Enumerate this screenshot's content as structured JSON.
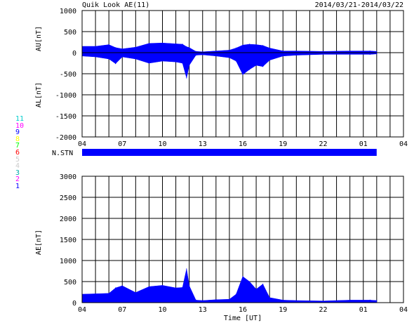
{
  "header": {
    "title": "Quik Look AE(11)",
    "date_range": "2014/03/21-2014/03/22"
  },
  "station_panel": {
    "label": "N.STN",
    "numbers": [
      {
        "text": "11",
        "color": "#00cccc"
      },
      {
        "text": "10",
        "color": "#ff00ff"
      },
      {
        "text": "9",
        "color": "#0000ff"
      },
      {
        "text": "8",
        "color": "#ffff00"
      },
      {
        "text": "7",
        "color": "#00ff00"
      },
      {
        "text": "6",
        "color": "#ff0000"
      },
      {
        "text": "5",
        "color": "#cccccc"
      },
      {
        "text": "4",
        "color": "#cccccc"
      },
      {
        "text": "3",
        "color": "#00aaaa"
      },
      {
        "text": "2",
        "color": "#ff00ff"
      },
      {
        "text": "1",
        "color": "#0000ff"
      }
    ]
  },
  "colors": {
    "fill": "#0000ff",
    "grid": "#000000",
    "background": "#ffffff"
  },
  "chart_data": [
    {
      "type": "area",
      "title": "",
      "xlabel": "",
      "ylabel_top": "AU[nT]",
      "ylabel_bottom": "AL[nT]",
      "xlim": [
        4,
        28
      ],
      "ylim": [
        -2000,
        1000
      ],
      "yticks": [
        1000,
        500,
        0,
        -500,
        -1000,
        -1500,
        -2000
      ],
      "xticks": [
        "04",
        "07",
        "10",
        "13",
        "16",
        "19",
        "22",
        "01",
        "04"
      ],
      "grid": true,
      "x": [
        4.0,
        5.0,
        6.0,
        6.5,
        7.0,
        8.0,
        9.0,
        10.0,
        11.0,
        11.5,
        11.8,
        12.0,
        12.5,
        13.0,
        14.0,
        15.0,
        15.5,
        16.0,
        16.5,
        17.0,
        17.5,
        18.0,
        19.0,
        20.0,
        22.0,
        24.0,
        25.5,
        26.0
      ],
      "au": [
        150,
        150,
        190,
        120,
        90,
        130,
        220,
        230,
        210,
        200,
        140,
        120,
        30,
        20,
        40,
        60,
        110,
        180,
        200,
        190,
        170,
        110,
        40,
        40,
        30,
        40,
        40,
        30
      ],
      "al": [
        -80,
        -100,
        -150,
        -260,
        -100,
        -150,
        -250,
        -200,
        -220,
        -250,
        -600,
        -300,
        -60,
        -50,
        -80,
        -120,
        -200,
        -520,
        -400,
        -300,
        -330,
        -180,
        -80,
        -60,
        -40,
        -40,
        -40,
        -30
      ]
    },
    {
      "type": "area",
      "title": "",
      "xlabel": "Time [UT]",
      "ylabel": "AE[nT]",
      "xlim": [
        4,
        28
      ],
      "ylim": [
        0,
        3000
      ],
      "yticks": [
        3000,
        2500,
        2000,
        1500,
        1000,
        500,
        0
      ],
      "xticks": [
        "04",
        "07",
        "10",
        "13",
        "16",
        "19",
        "22",
        "01",
        "04"
      ],
      "grid": true,
      "x": [
        4.0,
        5.0,
        6.0,
        6.5,
        7.0,
        8.0,
        9.0,
        10.0,
        11.0,
        11.5,
        11.8,
        12.0,
        12.5,
        13.0,
        14.0,
        15.0,
        15.5,
        16.0,
        16.5,
        17.0,
        17.5,
        18.0,
        19.0,
        20.0,
        22.0,
        24.0,
        25.5,
        26.0
      ],
      "ae": [
        200,
        210,
        220,
        350,
        400,
        240,
        380,
        410,
        350,
        360,
        800,
        400,
        60,
        50,
        70,
        80,
        200,
        620,
        500,
        320,
        440,
        120,
        60,
        50,
        40,
        60,
        60,
        50
      ]
    }
  ]
}
